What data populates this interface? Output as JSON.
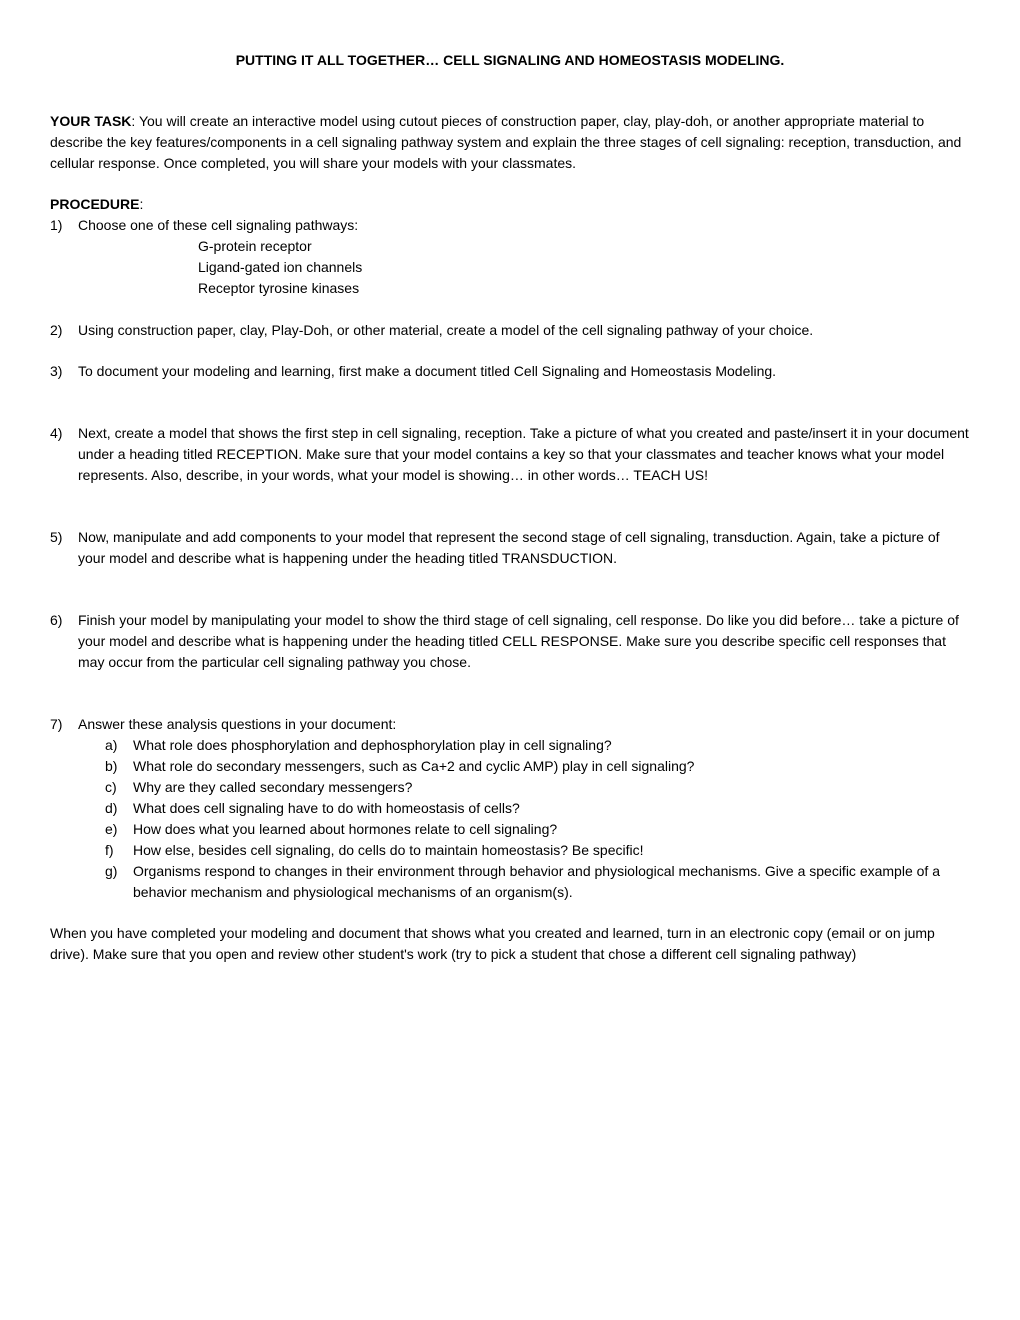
{
  "title": "PUTTING IT ALL TOGETHER… CELL SIGNALING AND HOMEOSTASIS MODELING.",
  "task": {
    "label": "YOUR TASK",
    "text": ":  You will create an interactive model using cutout pieces of construction paper, clay, play-doh, or another appropriate material to describe the key features/components in a cell signaling pathway system and explain the three stages of cell signaling: reception, transduction, and cellular response. Once completed, you will share your models with your classmates."
  },
  "procedure_heading": "PROCEDURE",
  "procedure_colon": ":",
  "step1": {
    "num": "1)",
    "text": "Choose one of these cell signaling pathways:",
    "pathways": [
      "G-protein receptor",
      "Ligand-gated ion channels",
      "Receptor tyrosine kinases"
    ]
  },
  "step2": {
    "num": "2)",
    "text": "Using construction paper, clay, Play-Doh, or other material, create a model of the cell signaling pathway of your choice."
  },
  "step3": {
    "num": "3)",
    "text": "To document your modeling and learning, first make a document titled Cell Signaling and Homeostasis Modeling."
  },
  "step4": {
    "num": "4)",
    "text": "Next, create a model that shows the first step in cell signaling, reception.  Take a picture of what you created and paste/insert it in your document under a heading titled RECEPTION.  Make sure that your model contains a key so that your classmates and teacher knows what your model represents.  Also, describe, in your words, what your model is showing… in other words… TEACH US!"
  },
  "step5": {
    "num": "5)",
    "text": "Now, manipulate and add components to your model that represent the second stage of cell signaling, transduction.  Again, take a picture of your model and describe what is happening under the heading titled TRANSDUCTION."
  },
  "step6": {
    "num": "6)",
    "text": "Finish your model by manipulating your model to show the third stage of cell signaling, cell response.  Do like you did before… take a picture of your model and describe what is happening under the heading titled CELL RESPONSE.  Make sure you describe specific cell responses that may occur from the particular cell signaling pathway you chose."
  },
  "step7": {
    "num": "7)",
    "text": "Answer these analysis questions in your document:",
    "questions": [
      {
        "letter": "a)",
        "text": "What role does phosphorylation and dephosphorylation play in cell signaling?"
      },
      {
        "letter": "b)",
        "text": "What role do secondary messengers, such as Ca+2 and cyclic AMP) play in cell signaling?"
      },
      {
        "letter": "c)",
        "text": "Why are they called secondary messengers?"
      },
      {
        "letter": "d)",
        "text": "What does cell signaling have to do with homeostasis of cells?"
      },
      {
        "letter": "e)",
        "text": "How does what you learned about hormones relate to cell signaling?"
      },
      {
        "letter": "f)",
        "text": "How else, besides cell signaling, do cells do to maintain homeostasis?  Be specific!"
      },
      {
        "letter": "g)",
        "text": "Organisms respond to changes in their environment through behavior and physiological mechanisms. Give a specific example of a behavior mechanism and physiological mechanisms of an organism(s)."
      }
    ]
  },
  "closing": "When you have completed your modeling and document that shows what you created and learned, turn in an electronic copy (email or on jump drive).  Make sure that you open and review other student's work (try to pick a student that chose a different cell signaling pathway)"
}
